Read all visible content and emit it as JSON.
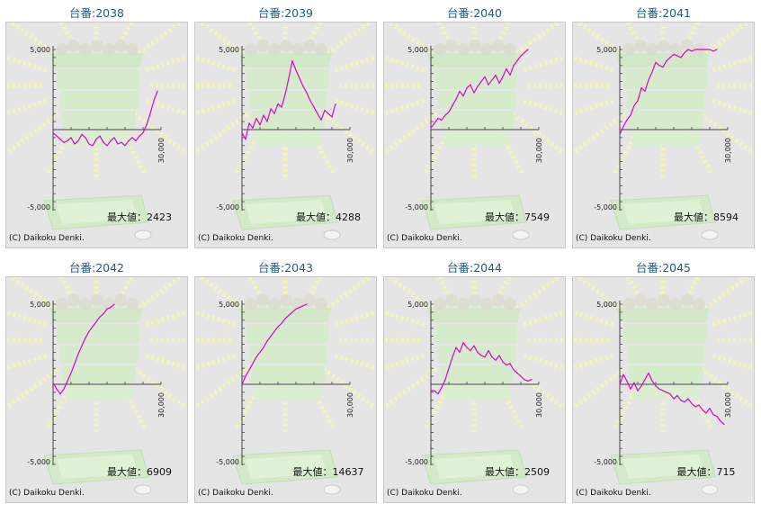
{
  "colors": {
    "title": "#1b5d8c",
    "line": "#e000d0",
    "panel_bg": "#e5e5e5",
    "axis": "#444444"
  },
  "max_prefix": "最大値：",
  "copyright": "(C) Daikoku Denki.",
  "chart_data": [
    {
      "type": "line",
      "title": "台番:2038",
      "max_label": "最大値：2423",
      "xlabel": "",
      "ylabel": "",
      "x_tick_labels": [
        "30,000"
      ],
      "y_tick_labels": [
        "5,000",
        "-5,000"
      ],
      "xlim": [
        0,
        30000
      ],
      "ylim": [
        -5000,
        5000
      ],
      "x": [
        0,
        1000,
        2000,
        3000,
        4000,
        5000,
        6000,
        7000,
        8000,
        9000,
        10000,
        11000,
        12000,
        13000,
        14000,
        15000,
        16000,
        17000,
        18000,
        19000,
        20000,
        21000,
        22000,
        23000,
        24000,
        25000,
        26000,
        27000,
        28000,
        29000
      ],
      "values": [
        -200,
        -400,
        -600,
        -800,
        -700,
        -500,
        -900,
        -700,
        -300,
        -500,
        -900,
        -1000,
        -600,
        -400,
        -800,
        -1000,
        -700,
        -500,
        -900,
        -800,
        -1000,
        -700,
        -500,
        -700,
        -400,
        -200,
        300,
        1000,
        1800,
        2400
      ]
    },
    {
      "type": "line",
      "title": "台番:2039",
      "max_label": "最大値：4288",
      "xlabel": "",
      "ylabel": "",
      "x_tick_labels": [
        "30,000"
      ],
      "y_tick_labels": [
        "5,000",
        "-5,000"
      ],
      "xlim": [
        0,
        30000
      ],
      "ylim": [
        -5000,
        5000
      ],
      "x": [
        0,
        1000,
        2000,
        3000,
        4000,
        5000,
        6000,
        7000,
        8000,
        9000,
        10000,
        11000,
        12000,
        13000,
        14000,
        15000,
        16000,
        17000,
        18000,
        19000,
        20000,
        21000,
        22000,
        23000,
        24000,
        25000,
        26000
      ],
      "values": [
        -200,
        -600,
        400,
        100,
        700,
        300,
        900,
        500,
        1300,
        1000,
        1600,
        1400,
        2200,
        3200,
        4300,
        3700,
        3200,
        2700,
        2300,
        1800,
        1400,
        1000,
        600,
        1200,
        1000,
        800,
        1600
      ]
    },
    {
      "type": "line",
      "title": "台番:2040",
      "max_label": "最大値：7549",
      "xlabel": "",
      "ylabel": "",
      "x_tick_labels": [
        "30,000"
      ],
      "y_tick_labels": [
        "5,000",
        "-5,000"
      ],
      "xlim": [
        0,
        30000
      ],
      "ylim": [
        -5000,
        5000
      ],
      "x": [
        0,
        1000,
        2000,
        3000,
        4000,
        5000,
        6000,
        7000,
        8000,
        9000,
        10000,
        11000,
        12000,
        13000,
        14000,
        15000,
        16000,
        17000,
        18000,
        19000,
        20000,
        21000,
        22000,
        23000,
        24000,
        25000,
        26000,
        27000
      ],
      "values": [
        100,
        400,
        700,
        600,
        900,
        1100,
        1500,
        1900,
        2400,
        2100,
        2600,
        2800,
        2300,
        2700,
        3000,
        3300,
        2800,
        3100,
        3400,
        2900,
        3300,
        3800,
        3400,
        4000,
        4300,
        4600,
        4800,
        5000
      ]
    },
    {
      "type": "line",
      "title": "台番:2041",
      "max_label": "最大値：8594",
      "xlabel": "",
      "ylabel": "",
      "x_tick_labels": [
        "30,000"
      ],
      "y_tick_labels": [
        "5,000",
        "-5,000"
      ],
      "xlim": [
        0,
        30000
      ],
      "ylim": [
        -5000,
        5000
      ],
      "x": [
        0,
        1000,
        2000,
        3000,
        4000,
        5000,
        6000,
        7000,
        8000,
        9000,
        10000,
        11000,
        12000,
        13000,
        14000,
        15000,
        16000,
        17000,
        18000,
        19000,
        20000,
        21000,
        22000,
        23000,
        24000,
        25000,
        26000,
        27000
      ],
      "values": [
        -300,
        200,
        600,
        900,
        1500,
        1800,
        2600,
        2400,
        3100,
        3600,
        4200,
        4000,
        3900,
        4300,
        4500,
        4700,
        4600,
        4500,
        4800,
        5000,
        4900,
        5000,
        5000,
        5000,
        5000,
        5000,
        4900,
        5000
      ]
    },
    {
      "type": "line",
      "title": "台番:2042",
      "max_label": "最大値：6909",
      "xlabel": "",
      "ylabel": "",
      "x_tick_labels": [
        "30,000"
      ],
      "y_tick_labels": [
        "5,000",
        "-5,000"
      ],
      "xlim": [
        0,
        30000
      ],
      "ylim": [
        -5000,
        5000
      ],
      "x": [
        0,
        1000,
        2000,
        3000,
        4000,
        5000,
        6000,
        7000,
        8000,
        9000,
        10000,
        11000,
        12000,
        13000,
        14000,
        15000,
        16000,
        17000
      ],
      "values": [
        100,
        -300,
        -600,
        -300,
        200,
        700,
        1300,
        1900,
        2400,
        2900,
        3300,
        3600,
        3900,
        4200,
        4400,
        4700,
        4800,
        5000
      ]
    },
    {
      "type": "line",
      "title": "台番:2043",
      "max_label": "最大値：14637",
      "xlabel": "",
      "ylabel": "",
      "x_tick_labels": [
        "30,000"
      ],
      "y_tick_labels": [
        "5,000",
        "-5,000"
      ],
      "xlim": [
        0,
        30000
      ],
      "ylim": [
        -5000,
        5000
      ],
      "x": [
        0,
        1000,
        2000,
        3000,
        4000,
        5000,
        6000,
        7000,
        8000,
        9000,
        10000,
        11000,
        12000,
        13000,
        14000,
        15000,
        16000,
        17000,
        18000
      ],
      "values": [
        0,
        500,
        900,
        1300,
        1700,
        2000,
        2300,
        2700,
        3000,
        3300,
        3600,
        3800,
        4100,
        4300,
        4500,
        4700,
        4800,
        4900,
        5000
      ]
    },
    {
      "type": "line",
      "title": "台番:2044",
      "max_label": "最大値：2509",
      "xlabel": "",
      "ylabel": "",
      "x_tick_labels": [
        "30,000"
      ],
      "y_tick_labels": [
        "5,000",
        "-5,000"
      ],
      "xlim": [
        0,
        30000
      ],
      "ylim": [
        -5000,
        5000
      ],
      "x": [
        0,
        1000,
        2000,
        3000,
        4000,
        5000,
        6000,
        7000,
        8000,
        9000,
        10000,
        11000,
        12000,
        13000,
        14000,
        15000,
        16000,
        17000,
        18000,
        19000,
        20000,
        21000,
        22000,
        23000,
        24000,
        25000,
        26000,
        27000,
        28000
      ],
      "values": [
        -400,
        -400,
        -600,
        -200,
        300,
        1000,
        1700,
        2300,
        2000,
        2600,
        2300,
        2100,
        2400,
        2000,
        1800,
        1700,
        2100,
        1700,
        1500,
        1800,
        1400,
        1200,
        1300,
        900,
        700,
        500,
        300,
        200,
        300
      ]
    },
    {
      "type": "line",
      "title": "台番:2045",
      "max_label": "最大値：715",
      "xlabel": "",
      "ylabel": "",
      "x_tick_labels": [
        "30,000"
      ],
      "y_tick_labels": [
        "5,000",
        "-5,000"
      ],
      "xlim": [
        0,
        30000
      ],
      "ylim": [
        -5000,
        5000
      ],
      "x": [
        0,
        1000,
        2000,
        3000,
        4000,
        5000,
        6000,
        7000,
        8000,
        9000,
        10000,
        11000,
        12000,
        13000,
        14000,
        15000,
        16000,
        17000,
        18000,
        19000,
        20000,
        21000,
        22000,
        23000,
        24000,
        25000,
        26000,
        27000,
        28000,
        29000
      ],
      "values": [
        0,
        600,
        200,
        -300,
        100,
        -400,
        -100,
        300,
        700,
        200,
        -100,
        -300,
        -400,
        -500,
        -600,
        -900,
        -700,
        -1000,
        -1100,
        -900,
        -1200,
        -1400,
        -1300,
        -1600,
        -1800,
        -1500,
        -1900,
        -2000,
        -2300,
        -2500
      ]
    }
  ]
}
